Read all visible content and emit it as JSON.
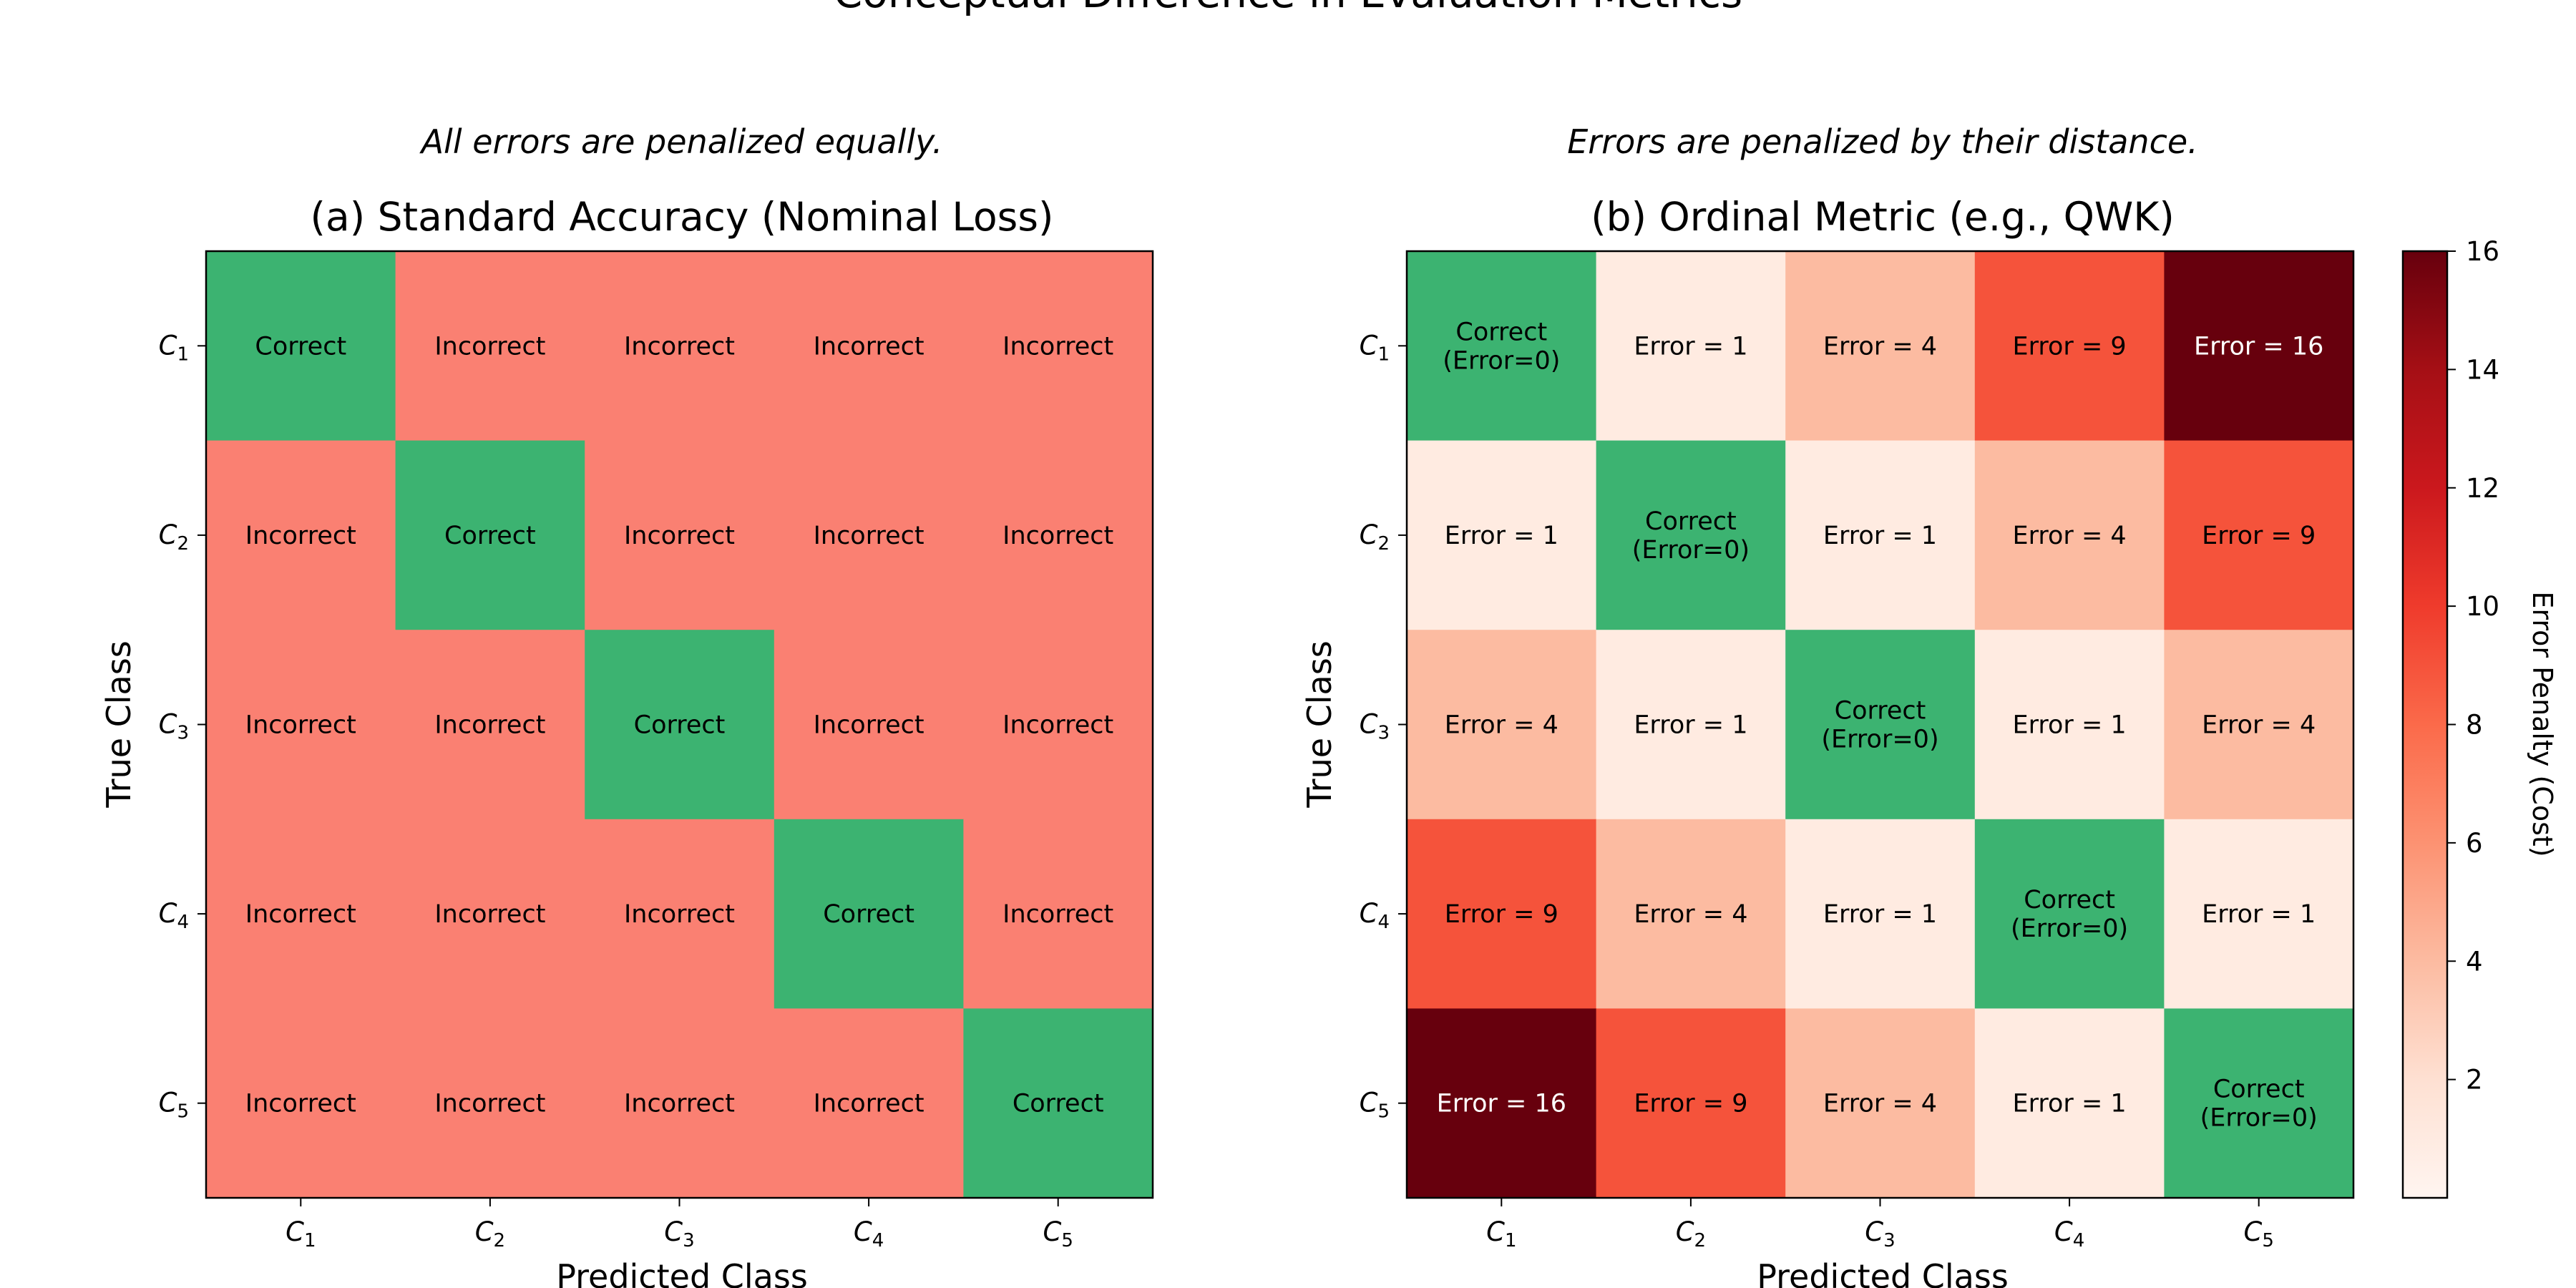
{
  "title": "Conceptual Difference in Evaluation Metrics",
  "colors": {
    "correct": "#3cb371",
    "incorrect": "#fa8072",
    "colormap": "Reds"
  },
  "chart_data": [
    {
      "type": "heatmap",
      "subtitle": "All errors are penalized equally.",
      "title": "(a) Standard Accuracy (Nominal Loss)",
      "xlabel": "Predicted Class",
      "ylabel": "True Class",
      "x_ticks": [
        "C1",
        "C2",
        "C3",
        "C4",
        "C5"
      ],
      "y_ticks": [
        "C1",
        "C2",
        "C3",
        "C4",
        "C5"
      ],
      "cells": [
        [
          "Correct",
          "Incorrect",
          "Incorrect",
          "Incorrect",
          "Incorrect"
        ],
        [
          "Incorrect",
          "Correct",
          "Incorrect",
          "Incorrect",
          "Incorrect"
        ],
        [
          "Incorrect",
          "Incorrect",
          "Correct",
          "Incorrect",
          "Incorrect"
        ],
        [
          "Incorrect",
          "Incorrect",
          "Incorrect",
          "Correct",
          "Incorrect"
        ],
        [
          "Incorrect",
          "Incorrect",
          "Incorrect",
          "Incorrect",
          "Correct"
        ]
      ]
    },
    {
      "type": "heatmap",
      "subtitle": "Errors are penalized by their distance.",
      "title": "(b) Ordinal Metric (e.g., QWK)",
      "xlabel": "Predicted Class",
      "ylabel": "True Class",
      "x_ticks": [
        "C1",
        "C2",
        "C3",
        "C4",
        "C5"
      ],
      "y_ticks": [
        "C1",
        "C2",
        "C3",
        "C4",
        "C5"
      ],
      "values": [
        [
          0,
          1,
          4,
          9,
          16
        ],
        [
          1,
          0,
          1,
          4,
          9
        ],
        [
          4,
          1,
          0,
          1,
          4
        ],
        [
          9,
          4,
          1,
          0,
          1
        ],
        [
          16,
          9,
          4,
          1,
          0
        ]
      ],
      "correct_label": [
        "Correct",
        "(Error=0)"
      ],
      "error_label_prefix": "Error = ",
      "colorbar": {
        "label": "Error Penalty (Cost)",
        "range": [
          0,
          16
        ],
        "ticks": [
          2,
          4,
          6,
          8,
          10,
          12,
          14,
          16
        ]
      }
    }
  ]
}
